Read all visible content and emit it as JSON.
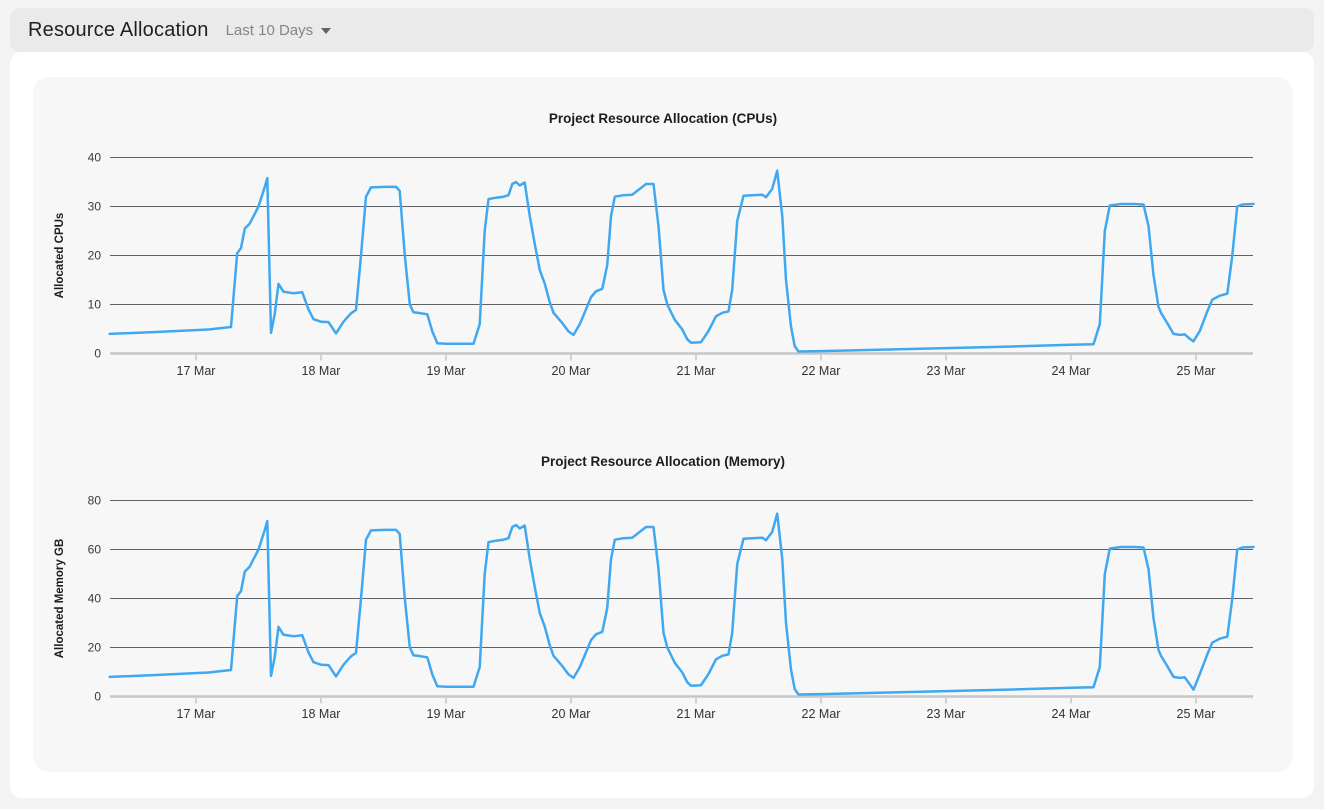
{
  "header": {
    "title": "Resource Allocation",
    "time_range_label": "Last 10 Days",
    "caret_icon": "caret-down"
  },
  "colors": {
    "page_bg": "#f3f3f3",
    "header_bg": "#eaeaea",
    "card_bg": "#ffffff",
    "panel_bg": "#f7f7f7",
    "line": "#40a8f0",
    "grid": "#5f6368",
    "axis": "#c4c6c9"
  },
  "chart_data": [
    {
      "type": "line",
      "title": "Project Resource Allocation (CPUs)",
      "ylabel": "Allocated CPUs",
      "ylim": [
        0,
        40
      ],
      "yticks": [
        0,
        10,
        20,
        30,
        40
      ],
      "xticks": [
        17,
        18,
        19,
        20,
        21,
        22,
        23,
        24,
        25
      ],
      "xtick_labels": [
        "17 Mar",
        "18 Mar",
        "19 Mar",
        "20 Mar",
        "21 Mar",
        "22 Mar",
        "23 Mar",
        "24 Mar",
        "25 Mar"
      ],
      "xlim": [
        16.31,
        25.46
      ],
      "grid": true,
      "legend": null,
      "line_color": "#40a8f0",
      "x": [
        16.31,
        16.7,
        17.1,
        17.28,
        17.33,
        17.36,
        17.39,
        17.43,
        17.5,
        17.55,
        17.57,
        17.6,
        17.63,
        17.66,
        17.7,
        17.78,
        17.85,
        17.9,
        17.94,
        18.0,
        18.06,
        18.12,
        18.18,
        18.24,
        18.28,
        18.32,
        18.36,
        18.4,
        18.5,
        18.6,
        18.63,
        18.67,
        18.71,
        18.74,
        18.8,
        18.85,
        18.89,
        18.93,
        19.0,
        19.1,
        19.22,
        19.27,
        19.31,
        19.34,
        19.4,
        19.46,
        19.5,
        19.53,
        19.56,
        19.59,
        19.63,
        19.67,
        19.71,
        19.75,
        19.79,
        19.83,
        19.86,
        19.93,
        19.98,
        20.02,
        20.07,
        20.11,
        20.16,
        20.2,
        20.25,
        20.29,
        20.32,
        20.35,
        20.42,
        20.49,
        20.55,
        20.6,
        20.66,
        20.7,
        20.74,
        20.77,
        20.83,
        20.89,
        20.93,
        20.96,
        21.04,
        21.1,
        21.16,
        21.21,
        21.26,
        21.29,
        21.33,
        21.38,
        21.45,
        21.53,
        21.56,
        21.61,
        21.65,
        21.69,
        21.72,
        21.76,
        21.79,
        21.82,
        22.0,
        22.5,
        23.0,
        23.5,
        24.0,
        24.18,
        24.23,
        24.27,
        24.31,
        24.4,
        24.5,
        24.58,
        24.62,
        24.66,
        24.7,
        24.72,
        24.77,
        24.82,
        24.87,
        24.91,
        24.95,
        24.98,
        25.03,
        25.09,
        25.13,
        25.19,
        25.25,
        25.29,
        25.33,
        25.37,
        25.46
      ],
      "values": [
        4.0,
        4.4,
        4.9,
        5.4,
        20.5,
        21.5,
        25.5,
        26.5,
        30.0,
        34.0,
        35.8,
        4.2,
        8.0,
        14.2,
        12.6,
        12.3,
        12.5,
        9.0,
        7.0,
        6.5,
        6.4,
        4.1,
        6.5,
        8.2,
        8.9,
        20.0,
        32.0,
        33.9,
        34.0,
        34.0,
        33.2,
        20.0,
        10.0,
        8.4,
        8.2,
        8.0,
        4.5,
        2.1,
        2.0,
        2.0,
        2.0,
        6.0,
        25.0,
        31.5,
        31.8,
        32.0,
        32.3,
        34.6,
        35.0,
        34.3,
        34.9,
        28.0,
        22.3,
        17.0,
        14.3,
        10.5,
        8.3,
        6.2,
        4.5,
        3.8,
        6.0,
        8.4,
        11.5,
        12.7,
        13.2,
        18.0,
        28.0,
        32.0,
        32.3,
        32.4,
        33.6,
        34.6,
        34.6,
        26.0,
        13.0,
        10.0,
        6.9,
        4.9,
        2.9,
        2.2,
        2.3,
        4.6,
        7.6,
        8.3,
        8.6,
        13.0,
        27.0,
        32.2,
        32.3,
        32.4,
        31.9,
        33.6,
        37.3,
        28.0,
        15.0,
        5.5,
        1.5,
        0.4,
        0.5,
        0.8,
        1.1,
        1.4,
        1.8,
        1.9,
        6.0,
        25.0,
        30.2,
        30.5,
        30.5,
        30.4,
        26.0,
        16.0,
        9.5,
        8.3,
        6.2,
        4.0,
        3.8,
        3.9,
        3.0,
        2.5,
        4.6,
        8.6,
        11.0,
        11.8,
        12.2,
        20.0,
        30.0,
        30.4,
        30.5
      ]
    },
    {
      "type": "line",
      "title": "Project Resource Allocation (Memory)",
      "ylabel": "Allocated Memory GB",
      "ylim": [
        0,
        80
      ],
      "yticks": [
        0,
        20,
        40,
        60,
        80
      ],
      "xticks": [
        17,
        18,
        19,
        20,
        21,
        22,
        23,
        24,
        25
      ],
      "xtick_labels": [
        "17 Mar",
        "18 Mar",
        "19 Mar",
        "20 Mar",
        "21 Mar",
        "22 Mar",
        "23 Mar",
        "24 Mar",
        "25 Mar"
      ],
      "xlim": [
        16.31,
        25.46
      ],
      "grid": true,
      "legend": null,
      "line_color": "#40a8f0",
      "x": [
        16.31,
        16.7,
        17.1,
        17.28,
        17.33,
        17.36,
        17.39,
        17.43,
        17.5,
        17.55,
        17.57,
        17.6,
        17.63,
        17.66,
        17.7,
        17.78,
        17.85,
        17.9,
        17.94,
        18.0,
        18.06,
        18.12,
        18.18,
        18.24,
        18.28,
        18.32,
        18.36,
        18.4,
        18.5,
        18.6,
        18.63,
        18.67,
        18.71,
        18.74,
        18.8,
        18.85,
        18.89,
        18.93,
        19.0,
        19.1,
        19.22,
        19.27,
        19.31,
        19.34,
        19.4,
        19.46,
        19.5,
        19.53,
        19.56,
        19.59,
        19.63,
        19.67,
        19.71,
        19.75,
        19.79,
        19.83,
        19.86,
        19.93,
        19.98,
        20.02,
        20.07,
        20.11,
        20.16,
        20.2,
        20.25,
        20.29,
        20.32,
        20.35,
        20.42,
        20.49,
        20.55,
        20.6,
        20.66,
        20.7,
        20.74,
        20.77,
        20.83,
        20.89,
        20.93,
        20.96,
        21.04,
        21.1,
        21.16,
        21.21,
        21.26,
        21.29,
        21.33,
        21.38,
        21.45,
        21.53,
        21.56,
        21.61,
        21.65,
        21.69,
        21.72,
        21.76,
        21.79,
        21.82,
        22.0,
        22.5,
        23.0,
        23.5,
        24.0,
        24.18,
        24.23,
        24.27,
        24.31,
        24.4,
        24.5,
        24.58,
        24.62,
        24.66,
        24.7,
        24.72,
        24.77,
        24.82,
        24.87,
        24.91,
        24.95,
        24.98,
        25.03,
        25.09,
        25.13,
        25.19,
        25.25,
        25.29,
        25.33,
        25.37,
        25.46
      ],
      "values": [
        8.0,
        8.8,
        9.8,
        10.8,
        41.0,
        43.0,
        51.0,
        53.0,
        60.0,
        68.0,
        71.6,
        8.4,
        16.0,
        28.4,
        25.2,
        24.6,
        25.0,
        18.0,
        14.0,
        13.0,
        12.8,
        8.2,
        13.0,
        16.4,
        17.8,
        40.0,
        64.0,
        67.8,
        68.0,
        68.0,
        66.4,
        40.0,
        20.0,
        16.8,
        16.4,
        16.0,
        9.0,
        4.2,
        4.0,
        4.0,
        4.0,
        12.0,
        50.0,
        63.0,
        63.6,
        64.0,
        64.6,
        69.2,
        70.0,
        68.6,
        69.8,
        56.0,
        44.6,
        34.0,
        28.6,
        21.0,
        16.6,
        12.4,
        9.0,
        7.6,
        12.0,
        16.8,
        23.0,
        25.4,
        26.4,
        36.0,
        56.0,
        64.0,
        64.6,
        64.8,
        67.2,
        69.2,
        69.2,
        52.0,
        26.0,
        20.0,
        13.8,
        9.8,
        5.8,
        4.4,
        4.6,
        9.2,
        15.2,
        16.6,
        17.2,
        26.0,
        54.0,
        64.4,
        64.6,
        64.8,
        63.8,
        67.2,
        74.6,
        56.0,
        30.0,
        11.0,
        3.0,
        0.8,
        1.0,
        1.6,
        2.2,
        2.8,
        3.6,
        3.8,
        12.0,
        50.0,
        60.4,
        61.0,
        61.0,
        60.8,
        52.0,
        32.0,
        19.0,
        16.6,
        12.4,
        8.0,
        7.6,
        7.8,
        5.0,
        2.8,
        9.2,
        17.2,
        22.0,
        23.6,
        24.4,
        40.0,
        60.0,
        60.8,
        61.0
      ]
    }
  ]
}
